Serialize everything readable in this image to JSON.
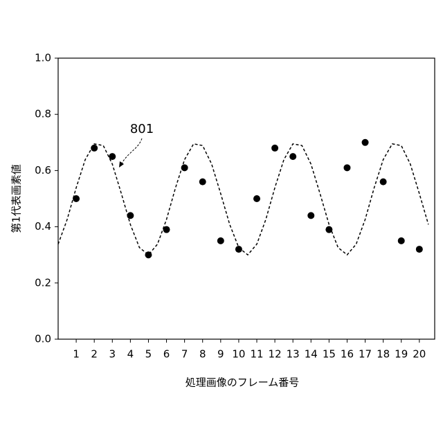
{
  "chart_data": {
    "type": "scatter",
    "y_label": "第1代表画素値",
    "x_label": "処理画像のフレーム番号",
    "annotation": "801",
    "xlim": [
      0,
      20.85
    ],
    "ylim": [
      0,
      1
    ],
    "xticks": [
      1,
      2,
      3,
      4,
      5,
      6,
      7,
      8,
      9,
      10,
      11,
      12,
      13,
      14,
      15,
      16,
      17,
      18,
      19,
      20
    ],
    "yticks": [
      {
        "value": 0,
        "label": "0.0"
      },
      0.2,
      0.4,
      0.6,
      0.8,
      {
        "value": 1,
        "label": "1.0"
      }
    ],
    "points": {
      "color": "#000000",
      "x": [
        1,
        2,
        3,
        4,
        5,
        6,
        7,
        8,
        9,
        10,
        11,
        12,
        13,
        14,
        15,
        16,
        17,
        18,
        19,
        20
      ],
      "values": [
        0.5,
        0.68,
        0.65,
        0.44,
        0.3,
        0.39,
        0.61,
        0.56,
        0.35,
        0.32,
        0.5,
        0.68,
        0.65,
        0.44,
        0.39,
        0.61,
        0.7,
        0.56,
        0.35,
        0.32
      ]
    },
    "curve": {
      "color": "#000000",
      "dashed": true,
      "x": [
        0,
        0.5,
        1,
        1.5,
        2,
        2.5,
        3,
        3.5,
        4,
        4.5,
        5,
        5.5,
        6,
        6.5,
        7,
        7.5,
        8,
        8.5,
        9,
        9.5,
        10,
        10.5,
        11,
        11.5,
        12,
        12.5,
        13,
        13.5,
        14,
        14.5,
        15,
        15.5,
        16,
        16.5,
        17,
        17.5,
        18,
        18.5,
        19,
        19.5,
        20,
        20.5
      ],
      "values": [
        0.338,
        0.426,
        0.539,
        0.639,
        0.695,
        0.689,
        0.623,
        0.518,
        0.408,
        0.326,
        0.3,
        0.338,
        0.426,
        0.539,
        0.639,
        0.695,
        0.689,
        0.623,
        0.518,
        0.408,
        0.326,
        0.3,
        0.338,
        0.426,
        0.539,
        0.639,
        0.695,
        0.689,
        0.623,
        0.518,
        0.408,
        0.326,
        0.3,
        0.338,
        0.426,
        0.539,
        0.639,
        0.695,
        0.689,
        0.623,
        0.518,
        0.408
      ]
    }
  }
}
